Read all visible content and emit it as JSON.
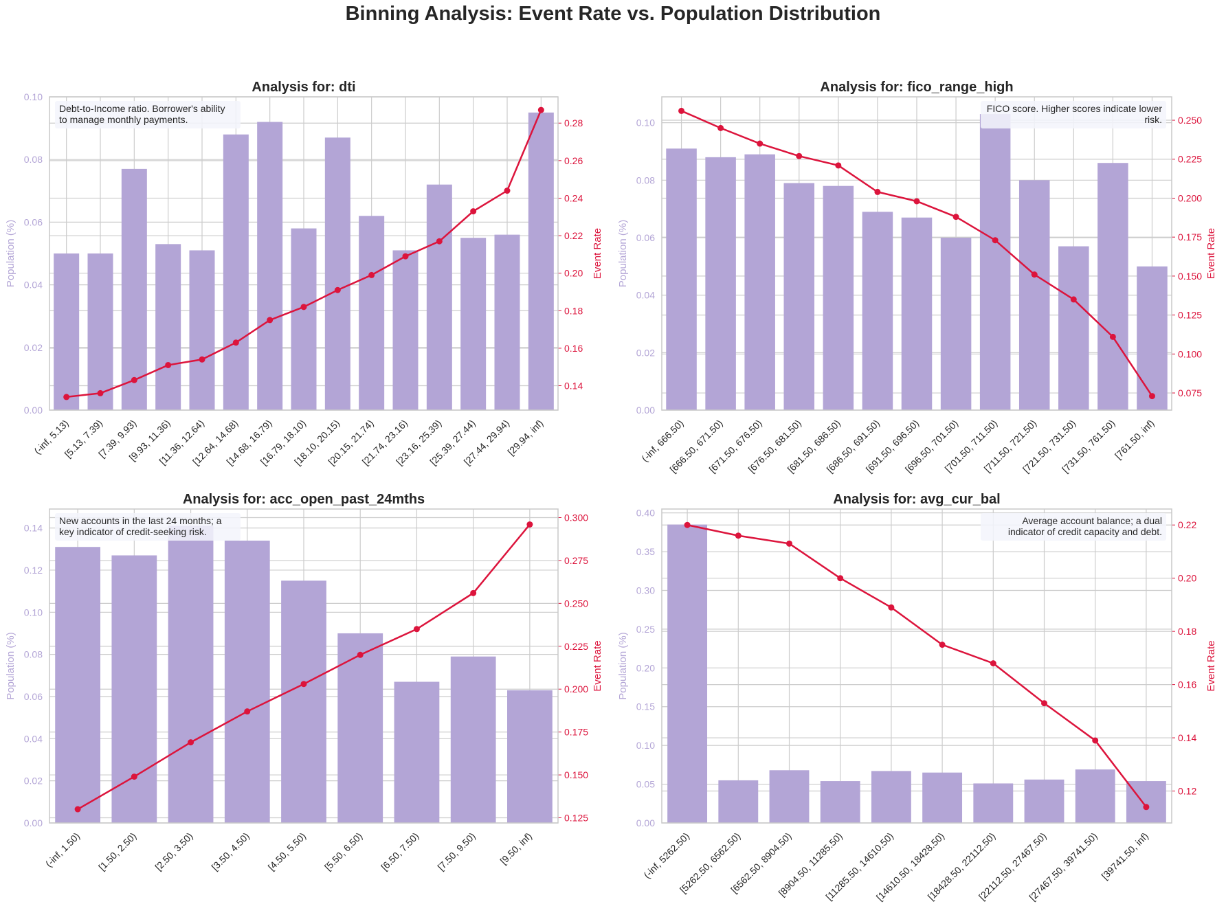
{
  "suptitle": "Binning Analysis: Event Rate vs. Population Distribution",
  "colors": {
    "bar": "#b3a5d6",
    "line": "#dc143c",
    "grid": "#cccccc",
    "frame": "#c8c8c8",
    "text": "#262626"
  },
  "chart_data": [
    {
      "type": "bar",
      "title": "Analysis for: dti",
      "ylabel": "Population (%)",
      "y2label": "Event Rate",
      "note": [
        "Debt-to-Income ratio. Borrower's ability",
        "to manage monthly payments."
      ],
      "note_position": "top-left",
      "categories": [
        "(-inf, 5.13)",
        "[5.13, 7.39)",
        "[7.39, 9.93)",
        "[9.93, 11.36)",
        "[11.36, 12.64)",
        "[12.64, 14.68)",
        "[14.68, 16.79)",
        "[16.79, 18.10)",
        "[18.10, 20.15)",
        "[20.15, 21.74)",
        "[21.74, 23.16)",
        "[23.16, 25.39)",
        "[25.39, 27.44)",
        "[27.44, 29.94)",
        "[29.94, inf)"
      ],
      "series": [
        {
          "name": "Population (%)",
          "kind": "bar",
          "axis": "left",
          "values": [
            0.05,
            0.05,
            0.077,
            0.053,
            0.051,
            0.088,
            0.092,
            0.058,
            0.087,
            0.062,
            0.051,
            0.072,
            0.055,
            0.056,
            0.095
          ]
        },
        {
          "name": "Event Rate",
          "kind": "line",
          "axis": "right",
          "values": [
            0.134,
            0.136,
            0.143,
            0.151,
            0.154,
            0.163,
            0.175,
            0.182,
            0.191,
            0.199,
            0.209,
            0.217,
            0.233,
            0.244,
            0.287
          ]
        }
      ],
      "ylim": [
        0,
        0.1
      ],
      "yticks": [
        "0.00",
        "0.02",
        "0.04",
        "0.06",
        "0.08",
        "0.10"
      ],
      "y2lim": [
        0.127,
        0.294
      ],
      "y2ticks": [
        "0.14",
        "0.16",
        "0.18",
        "0.20",
        "0.22",
        "0.24",
        "0.26",
        "0.28"
      ],
      "grid": true
    },
    {
      "type": "bar",
      "title": "Analysis for: fico_range_high",
      "ylabel": "Population (%)",
      "y2label": "Event Rate",
      "note": [
        "FICO score. Higher scores indicate lower",
        "risk."
      ],
      "note_position": "top-right",
      "categories": [
        "(-inf, 666.50)",
        "[666.50, 671.50)",
        "[671.50, 676.50)",
        "[676.50, 681.50)",
        "[681.50, 686.50)",
        "[686.50, 691.50)",
        "[691.50, 696.50)",
        "[696.50, 701.50)",
        "[701.50, 711.50)",
        "[711.50, 721.50)",
        "[721.50, 731.50)",
        "[731.50, 761.50)",
        "[761.50, inf)"
      ],
      "series": [
        {
          "name": "Population (%)",
          "kind": "bar",
          "axis": "left",
          "values": [
            0.091,
            0.088,
            0.089,
            0.079,
            0.078,
            0.069,
            0.067,
            0.06,
            0.103,
            0.08,
            0.057,
            0.086,
            0.05
          ]
        },
        {
          "name": "Event Rate",
          "kind": "line",
          "axis": "right",
          "values": [
            0.256,
            0.245,
            0.235,
            0.227,
            0.221,
            0.204,
            0.198,
            0.188,
            0.173,
            0.151,
            0.135,
            0.111,
            0.073
          ]
        }
      ],
      "ylim": [
        0,
        0.109
      ],
      "yticks": [
        "0.00",
        "0.02",
        "0.04",
        "0.06",
        "0.08",
        "0.10"
      ],
      "y2lim": [
        0.064,
        0.265
      ],
      "y2ticks": [
        "0.075",
        "0.100",
        "0.125",
        "0.150",
        "0.175",
        "0.200",
        "0.225",
        "0.250"
      ],
      "grid": true
    },
    {
      "type": "bar",
      "title": "Analysis for: acc_open_past_24mths",
      "ylabel": "Population (%)",
      "y2label": "Event Rate",
      "note": [
        "New accounts in the last 24 months; a",
        "key indicator of credit-seeking risk."
      ],
      "note_position": "top-left",
      "categories": [
        "(-inf, 1.50)",
        "[1.50, 2.50)",
        "[2.50, 3.50)",
        "[3.50, 4.50)",
        "[4.50, 5.50)",
        "[5.50, 6.50)",
        "[6.50, 7.50)",
        "[7.50, 9.50)",
        "[9.50, inf)"
      ],
      "series": [
        {
          "name": "Population (%)",
          "kind": "bar",
          "axis": "left",
          "values": [
            0.131,
            0.127,
            0.141,
            0.134,
            0.115,
            0.09,
            0.067,
            0.079,
            0.063
          ]
        },
        {
          "name": "Event Rate",
          "kind": "line",
          "axis": "right",
          "values": [
            0.13,
            0.149,
            0.169,
            0.187,
            0.203,
            0.22,
            0.235,
            0.256,
            0.296
          ]
        }
      ],
      "ylim": [
        0,
        0.149
      ],
      "yticks": [
        "0.00",
        "0.02",
        "0.04",
        "0.06",
        "0.08",
        "0.10",
        "0.12",
        "0.14"
      ],
      "y2lim": [
        0.122,
        0.305
      ],
      "y2ticks": [
        "0.125",
        "0.150",
        "0.175",
        "0.200",
        "0.225",
        "0.250",
        "0.275",
        "0.300"
      ],
      "grid": true
    },
    {
      "type": "bar",
      "title": "Analysis for: avg_cur_bal",
      "ylabel": "Population (%)",
      "y2label": "Event Rate",
      "note": [
        "Average account balance; a dual",
        "indicator of credit capacity and debt."
      ],
      "note_position": "top-right",
      "categories": [
        "(-inf, 5262.50)",
        "[5262.50, 6562.50)",
        "[6562.50, 8904.50)",
        "[8904.50, 11285.50)",
        "[11285.50, 14610.50)",
        "[14610.50, 18428.50)",
        "[18428.50, 22112.50)",
        "[22112.50, 27467.50)",
        "[27467.50, 39741.50)",
        "[39741.50, inf)"
      ],
      "series": [
        {
          "name": "Population (%)",
          "kind": "bar",
          "axis": "left",
          "values": [
            0.385,
            0.055,
            0.068,
            0.054,
            0.067,
            0.065,
            0.051,
            0.056,
            0.069,
            0.054
          ]
        },
        {
          "name": "Event Rate",
          "kind": "line",
          "axis": "right",
          "values": [
            0.22,
            0.216,
            0.213,
            0.2,
            0.189,
            0.175,
            0.168,
            0.153,
            0.139,
            0.114
          ]
        }
      ],
      "ylim": [
        0,
        0.405
      ],
      "yticks": [
        "0.00",
        "0.05",
        "0.10",
        "0.15",
        "0.20",
        "0.25",
        "0.30",
        "0.35",
        "0.40"
      ],
      "y2lim": [
        0.108,
        0.226
      ],
      "y2ticks": [
        "0.12",
        "0.14",
        "0.16",
        "0.18",
        "0.20",
        "0.22"
      ],
      "grid": true
    }
  ]
}
